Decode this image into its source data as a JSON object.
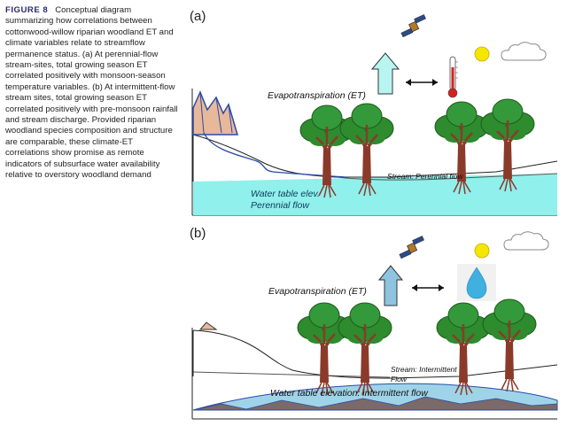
{
  "caption": {
    "figure_label": "FIGURE 8",
    "text": "Conceptual diagram summarizing how correlations between cottonwood-willow riparian woodland ET and climate variables relate to streamflow permanence status. (a) At perennial-flow stream-sites, total growing season ET correlated positively with monsoon-season temperature variables. (b) At intermittent-flow stream sites, total growing season ET correlated positively with pre-monsoon rainfall and stream discharge. Provided riparian woodland species composition and structure are comparable, these climate-ET correlations show promise as remote indicators of subsurface water availability relative to overstory woodland demand"
  },
  "panel_a": {
    "label": "(a)",
    "et_label": "Evapotranspiration (ET)",
    "stream_label": "Stream: Perennial flow",
    "water_label_1": "Water table elev.",
    "water_label_2": "Perennial flow",
    "icons": [
      "satellite-icon",
      "up-arrow-icon",
      "double-arrow-icon",
      "thermometer-icon",
      "sun-icon",
      "cloud-icon",
      "mountain-icon",
      "tree-icon"
    ]
  },
  "panel_b": {
    "label": "(b)",
    "et_label": "Evapotranspiration (ET)",
    "stream_label_1": "Stream: Intermittent",
    "stream_label_2": "Flow",
    "water_label": "Water table elevation: intermittent flow",
    "icons": [
      "satellite-icon",
      "up-arrow-icon",
      "double-arrow-icon",
      "raindrop-icon",
      "sun-icon",
      "cloud-icon",
      "mountain-icon",
      "tree-icon"
    ]
  },
  "colors": {
    "water_a": "#8ff0ec",
    "water_b": "#9fd4e8",
    "arrow_a": "#b8f5f0",
    "arrow_b": "#8ec4e0",
    "foliage": "#2e8b2e",
    "trunk": "#8b3a2a",
    "mountain": "#e8b89a",
    "sun": "#f5e600",
    "thermometer": "#d42020"
  }
}
